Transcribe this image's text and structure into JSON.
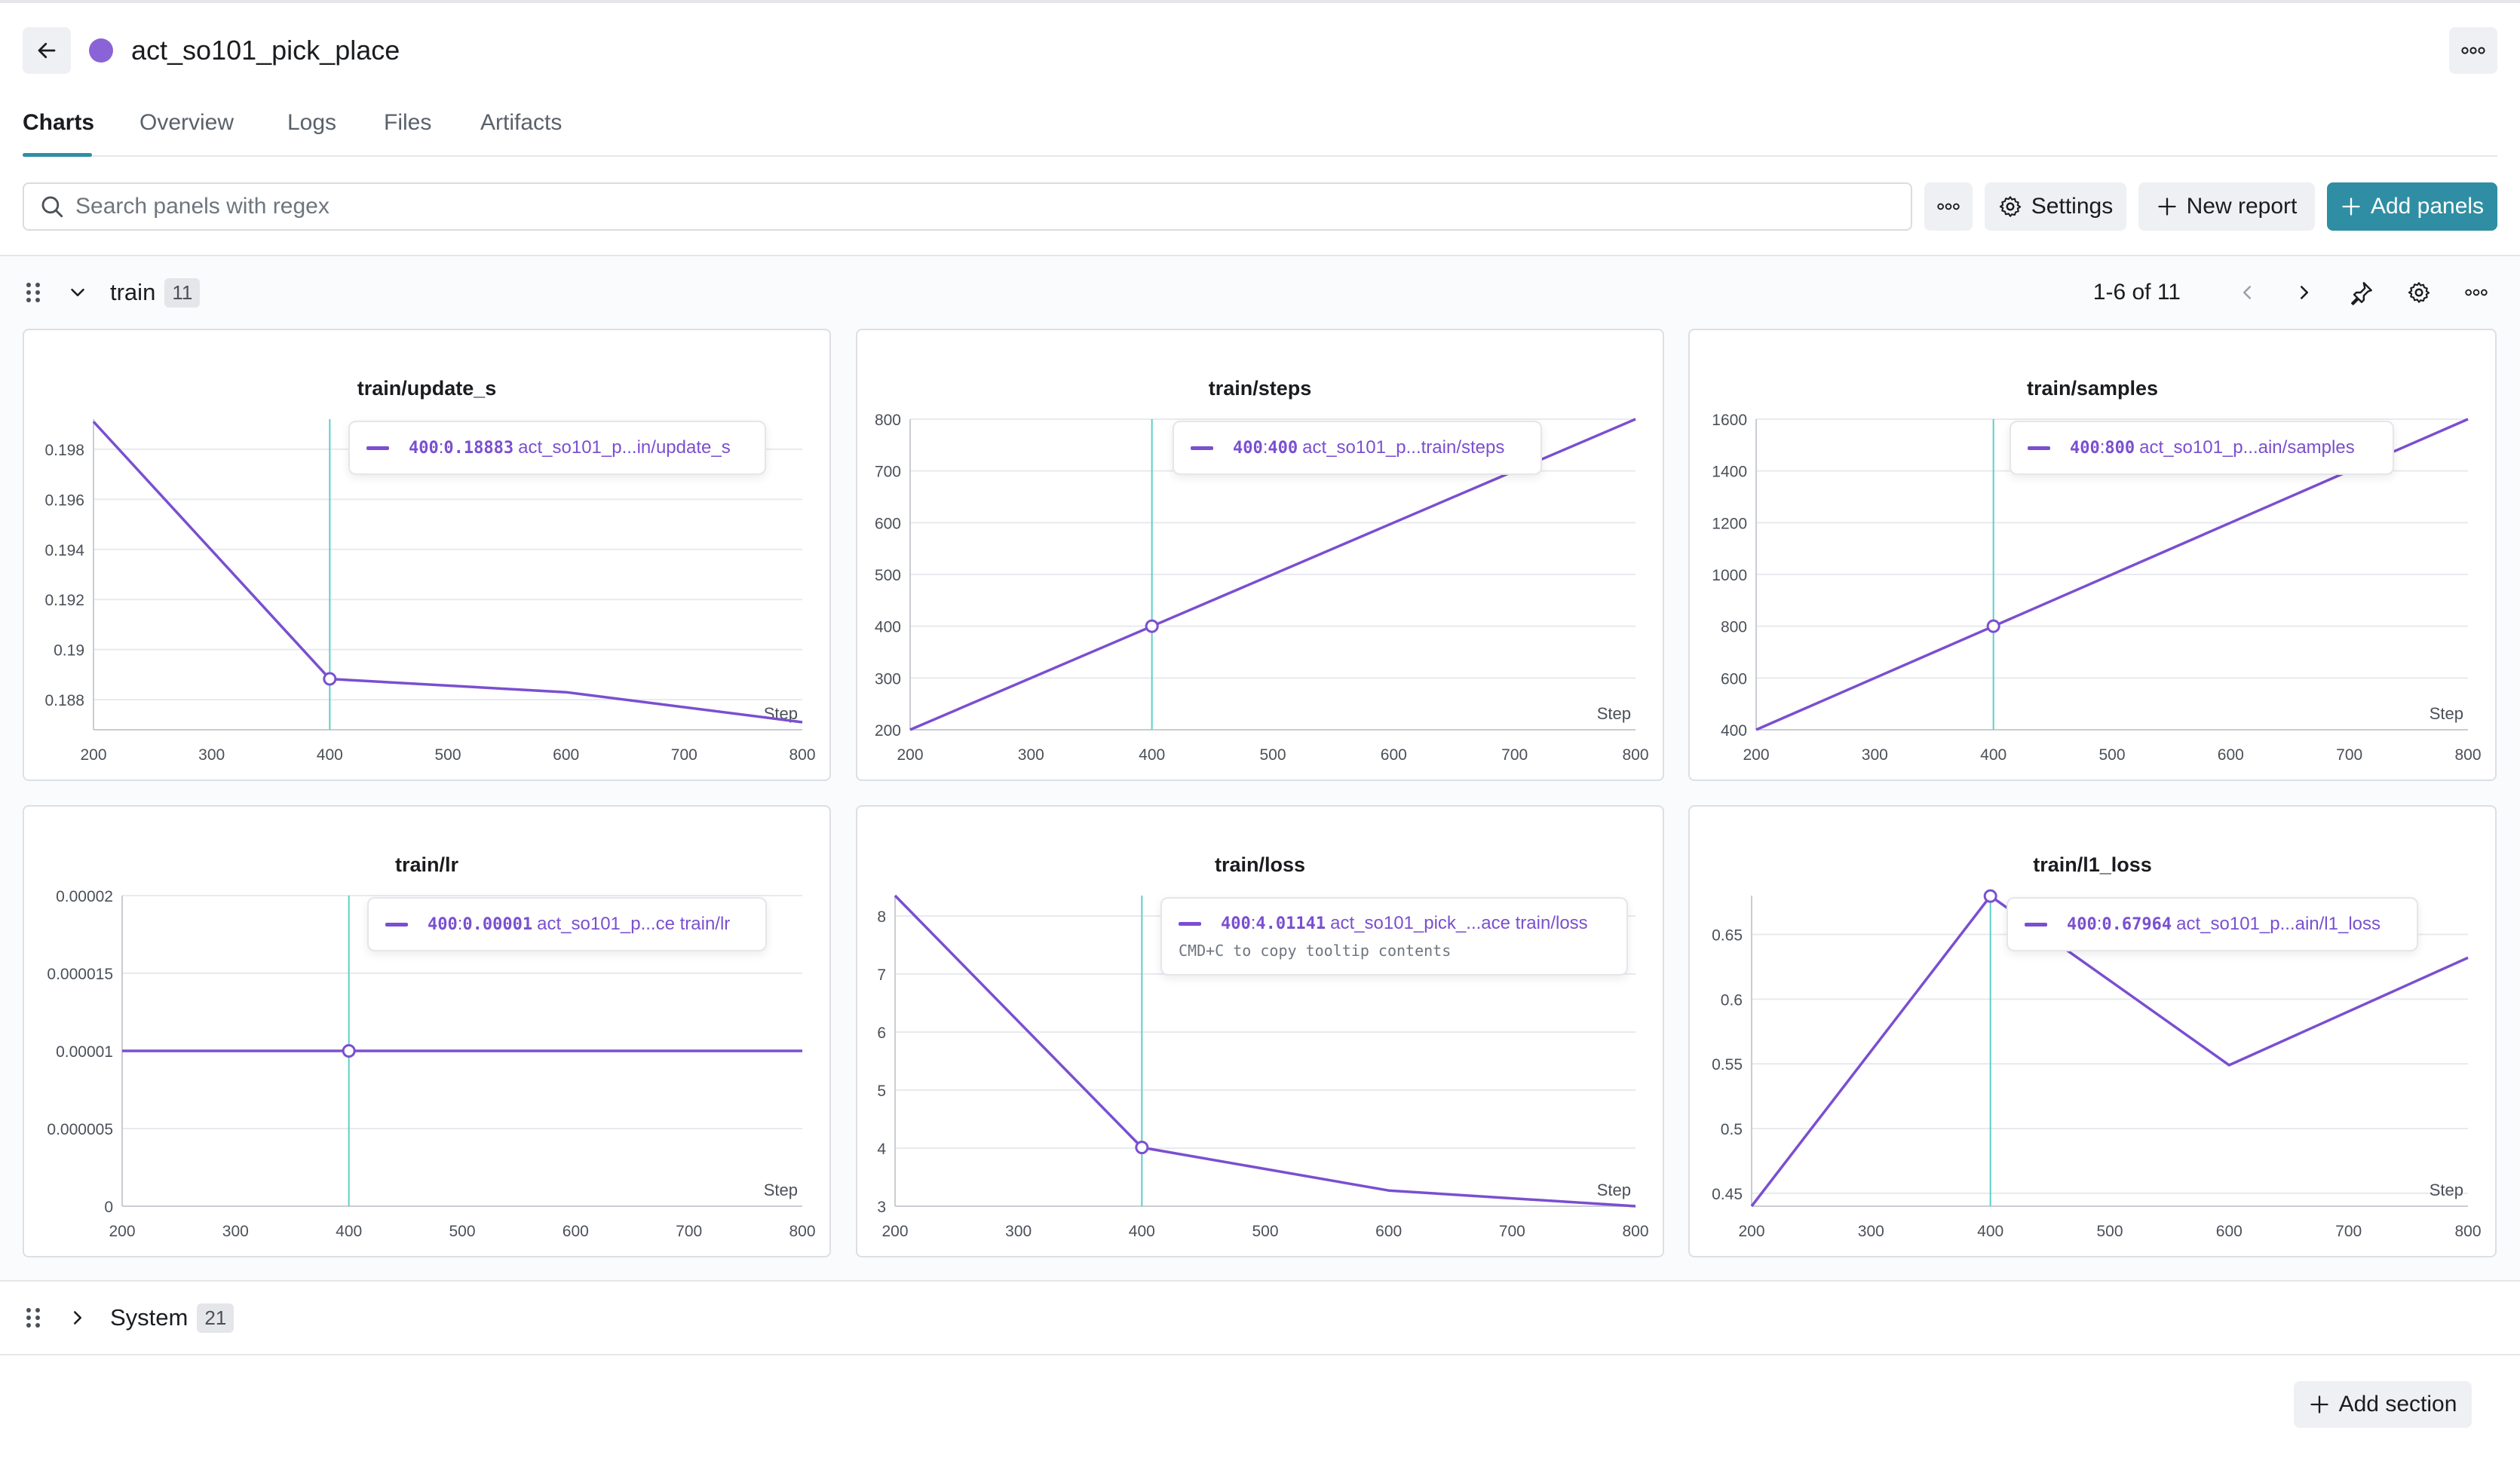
{
  "colors": {
    "accent": "#2f8ea3",
    "series": "#7a4fd0",
    "hover": "#5ecfc7",
    "run_dot": "#8a63d6"
  },
  "header": {
    "run_name": "act_so101_pick_place"
  },
  "tabs": [
    {
      "label": "Charts",
      "active": true
    },
    {
      "label": "Overview",
      "active": false
    },
    {
      "label": "Logs",
      "active": false
    },
    {
      "label": "Files",
      "active": false
    },
    {
      "label": "Artifacts",
      "active": false
    }
  ],
  "toolbar": {
    "search_placeholder": "Search panels with regex",
    "settings_label": "Settings",
    "new_report_label": "New report",
    "add_panels_label": "Add panels"
  },
  "sections": {
    "train": {
      "title": "train",
      "count": "11",
      "pager": "1-6 of 11",
      "expanded": true
    },
    "system": {
      "title": "System",
      "count": "21",
      "expanded": false
    }
  },
  "add_section_label": "Add section",
  "chart_data": [
    {
      "type": "line",
      "title": "train/update_s",
      "xlabel": "Step",
      "x": [
        200,
        400,
        600,
        800
      ],
      "y": [
        0.1991,
        0.18883,
        0.1883,
        0.1871
      ],
      "xlim": [
        200,
        800
      ],
      "ylim": [
        0.1868,
        0.1992
      ],
      "xticks": [
        200,
        300,
        400,
        500,
        600,
        700,
        800
      ],
      "yticks": [
        0.188,
        0.19,
        0.192,
        0.194,
        0.196,
        0.198
      ],
      "ytick_labels": [
        "0.188",
        "0.19",
        "0.192",
        "0.194",
        "0.196",
        "0.198"
      ],
      "hover": {
        "x": 400,
        "x_label": "400",
        "value": "0.18883",
        "series": "act_so101_p...in/update_s"
      }
    },
    {
      "type": "line",
      "title": "train/steps",
      "xlabel": "Step",
      "x": [
        200,
        400,
        600,
        800
      ],
      "y": [
        200,
        400,
        600,
        800
      ],
      "xlim": [
        200,
        800
      ],
      "ylim": [
        200,
        800
      ],
      "xticks": [
        200,
        300,
        400,
        500,
        600,
        700,
        800
      ],
      "yticks": [
        200,
        300,
        400,
        500,
        600,
        700,
        800
      ],
      "ytick_labels": [
        "200",
        "300",
        "400",
        "500",
        "600",
        "700",
        "800"
      ],
      "hover": {
        "x": 400,
        "x_label": "400",
        "value": "400",
        "series": "act_so101_p...train/steps"
      }
    },
    {
      "type": "line",
      "title": "train/samples",
      "xlabel": "Step",
      "x": [
        200,
        400,
        600,
        800
      ],
      "y": [
        400,
        800,
        1200,
        1600
      ],
      "xlim": [
        200,
        800
      ],
      "ylim": [
        400,
        1600
      ],
      "xticks": [
        200,
        300,
        400,
        500,
        600,
        700,
        800
      ],
      "yticks": [
        400,
        600,
        800,
        1000,
        1200,
        1400,
        1600
      ],
      "ytick_labels": [
        "400",
        "600",
        "800",
        "1000",
        "1200",
        "1400",
        "1600"
      ],
      "hover": {
        "x": 400,
        "x_label": "400",
        "value": "800",
        "series": "act_so101_p...ain/samples"
      }
    },
    {
      "type": "line",
      "title": "train/lr",
      "xlabel": "Step",
      "x": [
        200,
        400,
        600,
        800
      ],
      "y": [
        1e-05,
        1e-05,
        1e-05,
        1e-05
      ],
      "xlim": [
        200,
        800
      ],
      "ylim": [
        0,
        2e-05
      ],
      "xticks": [
        200,
        300,
        400,
        500,
        600,
        700,
        800
      ],
      "yticks": [
        0,
        5e-06,
        1e-05,
        1.5e-05,
        2e-05
      ],
      "ytick_labels": [
        "0",
        "0.000005",
        "0.00001",
        "0.000015",
        "0.00002"
      ],
      "hover": {
        "x": 400,
        "x_label": "400",
        "value": "0.00001",
        "series": "act_so101_p...ce train/lr"
      }
    },
    {
      "type": "line",
      "title": "train/loss",
      "xlabel": "Step",
      "x": [
        200,
        400,
        600,
        800
      ],
      "y": [
        8.35,
        4.01141,
        3.27,
        3.0
      ],
      "xlim": [
        200,
        800
      ],
      "ylim": [
        3,
        8.35
      ],
      "xticks": [
        200,
        300,
        400,
        500,
        600,
        700,
        800
      ],
      "yticks": [
        3,
        4,
        5,
        6,
        7,
        8
      ],
      "ytick_labels": [
        "3",
        "4",
        "5",
        "6",
        "7",
        "8"
      ],
      "hover": {
        "x": 400,
        "x_label": "400",
        "value": "4.01141",
        "series": "act_so101_pick_...ace train/loss",
        "hint": "CMD+C to copy tooltip contents"
      }
    },
    {
      "type": "line",
      "title": "train/l1_loss",
      "xlabel": "Step",
      "x": [
        200,
        400,
        600,
        800
      ],
      "y": [
        0.44,
        0.67964,
        0.549,
        0.632
      ],
      "xlim": [
        200,
        800
      ],
      "ylim": [
        0.44,
        0.68
      ],
      "xticks": [
        200,
        300,
        400,
        500,
        600,
        700,
        800
      ],
      "yticks": [
        0.45,
        0.5,
        0.55,
        0.6,
        0.65
      ],
      "ytick_labels": [
        "0.45",
        "0.5",
        "0.55",
        "0.6",
        "0.65"
      ],
      "hover": {
        "x": 400,
        "x_label": "400",
        "value": "0.67964",
        "series": "act_so101_p...ain/l1_loss"
      }
    }
  ]
}
